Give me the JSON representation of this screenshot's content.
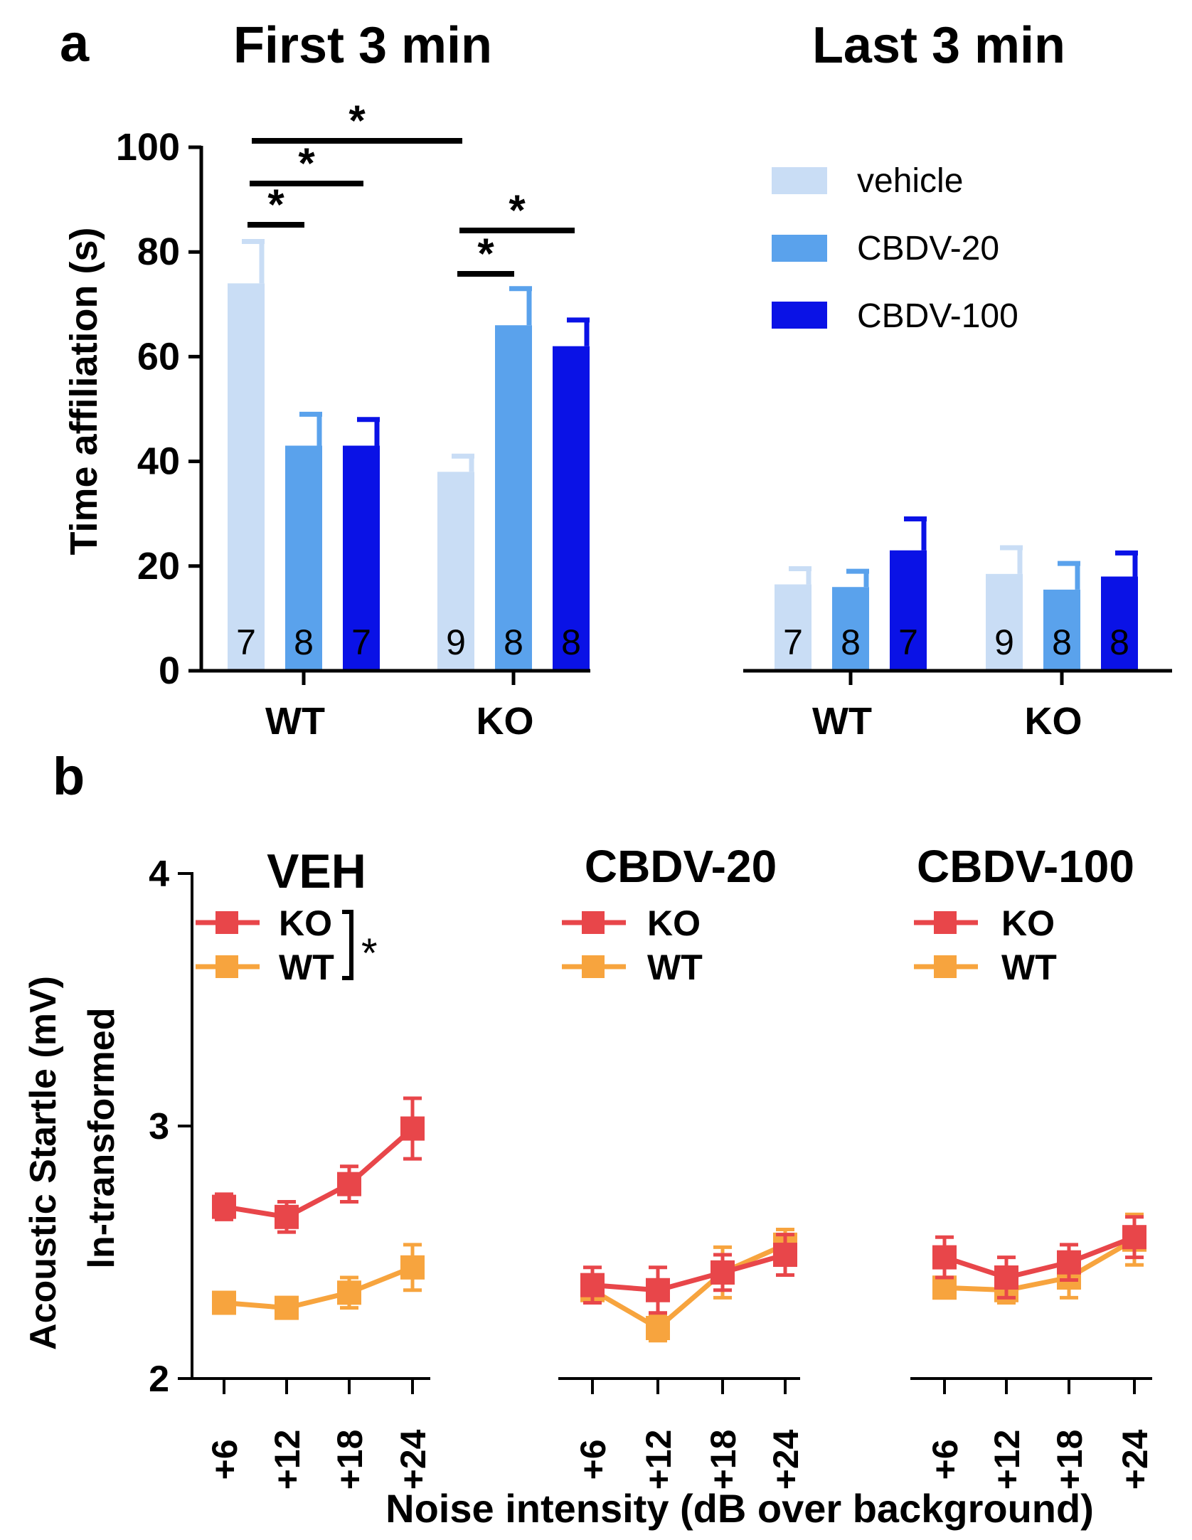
{
  "panel_labels": {
    "a": "a",
    "b": "b"
  },
  "colors": {
    "vehicle": "#c9ddf5",
    "cbdv20": "#5aa2ec",
    "cbdv100": "#0a12e6",
    "ko": "#e8464a",
    "wt": "#f7a43e",
    "axis": "#000000"
  },
  "chart_data": [
    {
      "id": "a-first",
      "type": "bar",
      "title": "First 3 min",
      "ylabel": "Time affiliation (s)",
      "ylim": [
        0,
        100
      ],
      "yticks": [
        "0",
        "20",
        "40",
        "60",
        "80",
        "100"
      ],
      "categories": [
        "WT",
        "KO"
      ],
      "series": [
        {
          "name": "vehicle",
          "values": [
            74,
            38
          ],
          "errors": [
            8,
            3
          ],
          "n": [
            "7",
            "9"
          ]
        },
        {
          "name": "CBDV-20",
          "values": [
            43,
            66
          ],
          "errors": [
            6,
            7
          ],
          "n": [
            "8",
            "8"
          ]
        },
        {
          "name": "CBDV-100",
          "values": [
            43,
            62
          ],
          "errors": [
            5,
            5
          ],
          "n": [
            "7",
            "8"
          ]
        }
      ],
      "annotations": [
        "*",
        "*",
        "*",
        "*",
        "*"
      ]
    },
    {
      "id": "a-last",
      "type": "bar",
      "title": "Last 3 min",
      "ylim": [
        0,
        100
      ],
      "categories": [
        "WT",
        "KO"
      ],
      "series": [
        {
          "name": "vehicle",
          "values": [
            16.5,
            18.5
          ],
          "errors": [
            3,
            5
          ],
          "n": [
            "7",
            "9"
          ]
        },
        {
          "name": "CBDV-20",
          "values": [
            16,
            15.5
          ],
          "errors": [
            3,
            5
          ],
          "n": [
            "8",
            "8"
          ]
        },
        {
          "name": "CBDV-100",
          "values": [
            23,
            18
          ],
          "errors": [
            6,
            4.5
          ],
          "n": [
            "7",
            "8"
          ]
        }
      ]
    },
    {
      "id": "b-veh",
      "type": "line",
      "title": "VEH",
      "ylabel_line1": "Acoustic Startle (mV)",
      "ylabel_line2": "ln-transformed",
      "ylim": [
        2,
        4
      ],
      "yticks": [
        "2",
        "3",
        "4"
      ],
      "x": [
        "+6",
        "+12",
        "+18",
        "+24"
      ],
      "series": [
        {
          "name": "KO",
          "values": [
            2.68,
            2.64,
            2.77,
            2.99
          ],
          "errors": [
            0.05,
            0.06,
            0.07,
            0.12
          ]
        },
        {
          "name": "WT",
          "values": [
            2.3,
            2.28,
            2.34,
            2.44
          ],
          "errors": [
            0.04,
            0.04,
            0.06,
            0.09
          ]
        }
      ],
      "annotation": "*"
    },
    {
      "id": "b-cbdv20",
      "type": "line",
      "title": "CBDV-20",
      "ylim": [
        2,
        4
      ],
      "x": [
        "+6",
        "+12",
        "+18",
        "+24"
      ],
      "series": [
        {
          "name": "KO",
          "values": [
            2.37,
            2.35,
            2.42,
            2.49
          ],
          "errors": [
            0.07,
            0.09,
            0.07,
            0.08
          ]
        },
        {
          "name": "WT",
          "values": [
            2.35,
            2.2,
            2.42,
            2.53
          ],
          "errors": [
            0.05,
            0.05,
            0.1,
            0.06
          ]
        }
      ]
    },
    {
      "id": "b-cbdv100",
      "type": "line",
      "title": "CBDV-100",
      "ylim": [
        2,
        4
      ],
      "x": [
        "+6",
        "+12",
        "+18",
        "+24"
      ],
      "series": [
        {
          "name": "KO",
          "values": [
            2.48,
            2.4,
            2.46,
            2.56
          ],
          "errors": [
            0.08,
            0.08,
            0.07,
            0.08
          ]
        },
        {
          "name": "WT",
          "values": [
            2.36,
            2.35,
            2.4,
            2.55
          ],
          "errors": [
            0.04,
            0.05,
            0.08,
            0.1
          ]
        }
      ]
    }
  ],
  "b_xlabel": "Noise intensity (dB over background)"
}
